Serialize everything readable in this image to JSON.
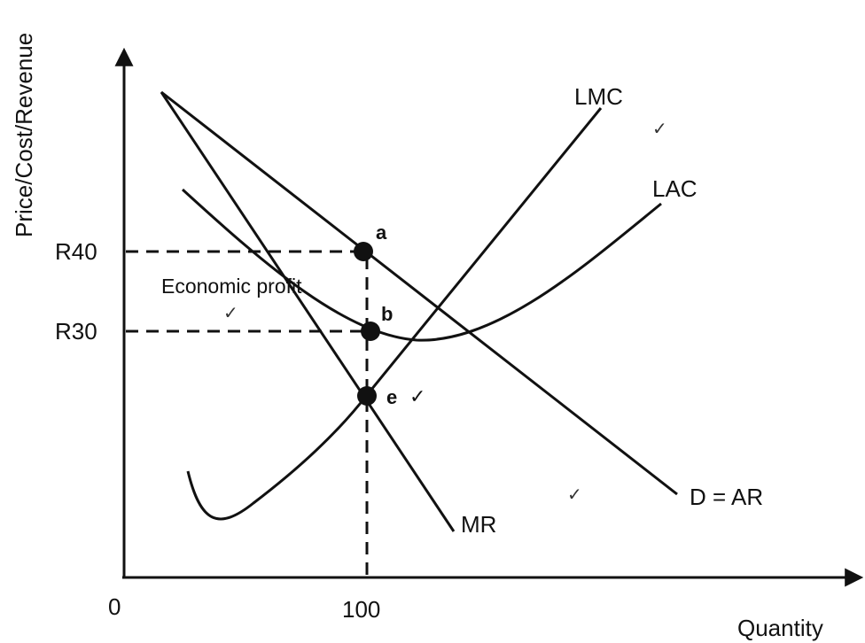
{
  "axes": {
    "y_label": "Price/Cost/Revenue",
    "x_label": "Quantity",
    "origin_label": "0",
    "x_tick_label": "100",
    "y_tick_high": "R40",
    "y_tick_low": "R30"
  },
  "curves": {
    "lmc": "LMC",
    "lac": "LAC",
    "demand": "D = AR",
    "mr": "MR"
  },
  "points": {
    "a": "a",
    "b": "b",
    "e": "e"
  },
  "annotations": {
    "economic_profit": "Economic profit",
    "check": "✓"
  },
  "colors": {
    "ink": "#111111",
    "background": "#ffffff"
  }
}
